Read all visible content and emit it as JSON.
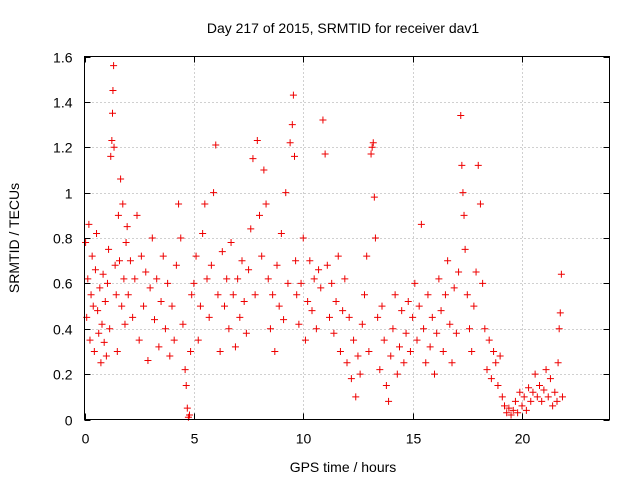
{
  "chart_data": {
    "type": "scatter",
    "title": "Day 217 of 2015, SRMTID for receiver dav1",
    "xlabel": "GPS time / hours",
    "ylabel": "SRMTID / TECUs",
    "xlim": [
      0,
      24
    ],
    "ylim": [
      0,
      1.6
    ],
    "xticks": [
      0,
      5,
      10,
      15,
      20
    ],
    "xtick_labels": [
      "0",
      "5",
      "10",
      "15",
      "20"
    ],
    "yticks": [
      0,
      0.2,
      0.4,
      0.6,
      0.8,
      1,
      1.2,
      1.4,
      1.6
    ],
    "ytick_labels": [
      "0",
      "0.2",
      "0.4",
      "0.6",
      "0.8",
      "1",
      "1.2",
      "1.4",
      "1.6"
    ],
    "grid": true,
    "marker": "plus",
    "color": "#ee0000",
    "series": [
      {
        "name": "SRMTID",
        "points": [
          [
            0.05,
            0.78
          ],
          [
            0.1,
            0.45
          ],
          [
            0.15,
            0.62
          ],
          [
            0.2,
            0.86
          ],
          [
            0.25,
            0.35
          ],
          [
            0.3,
            0.55
          ],
          [
            0.35,
            0.72
          ],
          [
            0.4,
            0.5
          ],
          [
            0.45,
            0.3
          ],
          [
            0.5,
            0.66
          ],
          [
            0.55,
            0.82
          ],
          [
            0.6,
            0.48
          ],
          [
            0.65,
            0.38
          ],
          [
            0.7,
            0.58
          ],
          [
            0.75,
            0.25
          ],
          [
            0.8,
            0.42
          ],
          [
            0.85,
            0.64
          ],
          [
            0.9,
            0.34
          ],
          [
            0.95,
            0.52
          ],
          [
            1.0,
            0.28
          ],
          [
            1.05,
            0.6
          ],
          [
            1.1,
            0.75
          ],
          [
            1.15,
            0.4
          ],
          [
            1.2,
            1.16
          ],
          [
            1.25,
            1.23
          ],
          [
            1.28,
            1.35
          ],
          [
            1.3,
            1.45
          ],
          [
            1.33,
            1.56
          ],
          [
            1.35,
            1.2
          ],
          [
            1.4,
            0.68
          ],
          [
            1.45,
            0.55
          ],
          [
            1.5,
            0.3
          ],
          [
            1.55,
            0.9
          ],
          [
            1.6,
            0.7
          ],
          [
            1.65,
            1.06
          ],
          [
            1.7,
            0.5
          ],
          [
            1.75,
            0.95
          ],
          [
            1.8,
            0.62
          ],
          [
            1.85,
            0.42
          ],
          [
            1.9,
            0.78
          ],
          [
            1.95,
            0.85
          ],
          [
            2.0,
            0.55
          ],
          [
            2.1,
            0.7
          ],
          [
            2.2,
            0.45
          ],
          [
            2.3,
            0.62
          ],
          [
            2.4,
            0.9
          ],
          [
            2.5,
            0.35
          ],
          [
            2.6,
            0.72
          ],
          [
            2.7,
            0.5
          ],
          [
            2.8,
            0.65
          ],
          [
            2.9,
            0.26
          ],
          [
            3.0,
            0.58
          ],
          [
            3.1,
            0.8
          ],
          [
            3.2,
            0.44
          ],
          [
            3.3,
            0.62
          ],
          [
            3.4,
            0.32
          ],
          [
            3.5,
            0.52
          ],
          [
            3.6,
            0.72
          ],
          [
            3.7,
            0.4
          ],
          [
            3.8,
            0.6
          ],
          [
            3.9,
            0.28
          ],
          [
            4.0,
            0.5
          ],
          [
            4.1,
            0.35
          ],
          [
            4.2,
            0.68
          ],
          [
            4.3,
            0.95
          ],
          [
            4.4,
            0.8
          ],
          [
            4.5,
            0.42
          ],
          [
            4.6,
            0.22
          ],
          [
            4.65,
            0.15
          ],
          [
            4.7,
            0.05
          ],
          [
            4.75,
            0.01
          ],
          [
            4.8,
            0.02
          ],
          [
            4.85,
            0.3
          ],
          [
            4.9,
            0.55
          ],
          [
            5.0,
            0.6
          ],
          [
            5.1,
            0.72
          ],
          [
            5.2,
            0.35
          ],
          [
            5.3,
            0.5
          ],
          [
            5.4,
            0.82
          ],
          [
            5.5,
            0.95
          ],
          [
            5.6,
            0.62
          ],
          [
            5.7,
            0.45
          ],
          [
            5.8,
            0.68
          ],
          [
            5.9,
            1.0
          ],
          [
            6.0,
            1.21
          ],
          [
            6.1,
            0.55
          ],
          [
            6.2,
            0.3
          ],
          [
            6.3,
            0.74
          ],
          [
            6.4,
            0.5
          ],
          [
            6.5,
            0.62
          ],
          [
            6.6,
            0.4
          ],
          [
            6.7,
            0.78
          ],
          [
            6.8,
            0.55
          ],
          [
            6.9,
            0.32
          ],
          [
            7.0,
            0.62
          ],
          [
            7.1,
            0.45
          ],
          [
            7.2,
            0.7
          ],
          [
            7.3,
            0.52
          ],
          [
            7.4,
            0.38
          ],
          [
            7.5,
            0.66
          ],
          [
            7.6,
            0.84
          ],
          [
            7.7,
            1.15
          ],
          [
            7.8,
            0.55
          ],
          [
            7.9,
            1.23
          ],
          [
            8.0,
            0.9
          ],
          [
            8.1,
            0.72
          ],
          [
            8.2,
            1.1
          ],
          [
            8.3,
            0.95
          ],
          [
            8.4,
            0.62
          ],
          [
            8.5,
            0.4
          ],
          [
            8.6,
            0.55
          ],
          [
            8.7,
            0.3
          ],
          [
            8.8,
            0.68
          ],
          [
            8.9,
            0.5
          ],
          [
            9.0,
            0.82
          ],
          [
            9.1,
            0.44
          ],
          [
            9.2,
            1.0
          ],
          [
            9.3,
            0.6
          ],
          [
            9.4,
            1.22
          ],
          [
            9.5,
            1.3
          ],
          [
            9.55,
            1.43
          ],
          [
            9.6,
            1.16
          ],
          [
            9.65,
            0.7
          ],
          [
            9.7,
            0.55
          ],
          [
            9.8,
            0.42
          ],
          [
            9.9,
            0.6
          ],
          [
            10.0,
            0.8
          ],
          [
            10.1,
            0.35
          ],
          [
            10.2,
            0.52
          ],
          [
            10.3,
            0.7
          ],
          [
            10.4,
            0.48
          ],
          [
            10.5,
            0.62
          ],
          [
            10.6,
            0.4
          ],
          [
            10.7,
            0.66
          ],
          [
            10.8,
            0.58
          ],
          [
            10.9,
            1.32
          ],
          [
            11.0,
            1.17
          ],
          [
            11.1,
            0.68
          ],
          [
            11.2,
            0.45
          ],
          [
            11.3,
            0.6
          ],
          [
            11.4,
            0.38
          ],
          [
            11.5,
            0.52
          ],
          [
            11.6,
            0.72
          ],
          [
            11.7,
            0.3
          ],
          [
            11.8,
            0.48
          ],
          [
            11.9,
            0.62
          ],
          [
            12.0,
            0.25
          ],
          [
            12.1,
            0.45
          ],
          [
            12.2,
            0.18
          ],
          [
            12.3,
            0.35
          ],
          [
            12.4,
            0.1
          ],
          [
            12.5,
            0.28
          ],
          [
            12.6,
            0.2
          ],
          [
            12.7,
            0.42
          ],
          [
            12.8,
            0.55
          ],
          [
            12.9,
            0.72
          ],
          [
            13.0,
            0.3
          ],
          [
            13.1,
            1.17
          ],
          [
            13.15,
            1.2
          ],
          [
            13.2,
            1.22
          ],
          [
            13.25,
            0.98
          ],
          [
            13.3,
            0.8
          ],
          [
            13.4,
            0.45
          ],
          [
            13.5,
            0.22
          ],
          [
            13.6,
            0.5
          ],
          [
            13.7,
            0.35
          ],
          [
            13.8,
            0.15
          ],
          [
            13.9,
            0.08
          ],
          [
            14.0,
            0.28
          ],
          [
            14.1,
            0.4
          ],
          [
            14.2,
            0.55
          ],
          [
            14.3,
            0.2
          ],
          [
            14.4,
            0.32
          ],
          [
            14.5,
            0.48
          ],
          [
            14.6,
            0.25
          ],
          [
            14.7,
            0.38
          ],
          [
            14.8,
            0.52
          ],
          [
            14.9,
            0.3
          ],
          [
            15.0,
            0.45
          ],
          [
            15.1,
            0.6
          ],
          [
            15.2,
            0.35
          ],
          [
            15.3,
            0.5
          ],
          [
            15.4,
            0.86
          ],
          [
            15.5,
            0.4
          ],
          [
            15.6,
            0.25
          ],
          [
            15.7,
            0.55
          ],
          [
            15.8,
            0.32
          ],
          [
            15.9,
            0.45
          ],
          [
            16.0,
            0.2
          ],
          [
            16.1,
            0.38
          ],
          [
            16.2,
            0.62
          ],
          [
            16.3,
            0.48
          ],
          [
            16.4,
            0.3
          ],
          [
            16.5,
            0.55
          ],
          [
            16.6,
            0.7
          ],
          [
            16.7,
            0.42
          ],
          [
            16.8,
            0.25
          ],
          [
            16.9,
            0.58
          ],
          [
            17.0,
            0.38
          ],
          [
            17.1,
            0.65
          ],
          [
            17.2,
            1.34
          ],
          [
            17.25,
            1.12
          ],
          [
            17.3,
            1.0
          ],
          [
            17.35,
            0.9
          ],
          [
            17.4,
            0.75
          ],
          [
            17.5,
            0.55
          ],
          [
            17.6,
            0.4
          ],
          [
            17.7,
            0.3
          ],
          [
            17.8,
            0.5
          ],
          [
            17.9,
            0.65
          ],
          [
            18.0,
            1.12
          ],
          [
            18.1,
            0.95
          ],
          [
            18.2,
            0.6
          ],
          [
            18.3,
            0.4
          ],
          [
            18.4,
            0.22
          ],
          [
            18.5,
            0.35
          ],
          [
            18.6,
            0.18
          ],
          [
            18.7,
            0.3
          ],
          [
            18.8,
            0.25
          ],
          [
            18.9,
            0.15
          ],
          [
            19.0,
            0.28
          ],
          [
            19.1,
            0.1
          ],
          [
            19.2,
            0.06
          ],
          [
            19.3,
            0.03
          ],
          [
            19.4,
            0.05
          ],
          [
            19.5,
            0.02
          ],
          [
            19.6,
            0.04
          ],
          [
            19.7,
            0.08
          ],
          [
            19.8,
            0.03
          ],
          [
            19.9,
            0.12
          ],
          [
            20.0,
            0.06
          ],
          [
            20.1,
            0.1
          ],
          [
            20.2,
            0.04
          ],
          [
            20.3,
            0.14
          ],
          [
            20.4,
            0.08
          ],
          [
            20.5,
            0.12
          ],
          [
            20.6,
            0.2
          ],
          [
            20.7,
            0.1
          ],
          [
            20.8,
            0.15
          ],
          [
            20.9,
            0.08
          ],
          [
            21.0,
            0.13
          ],
          [
            21.1,
            0.22
          ],
          [
            21.2,
            0.1
          ],
          [
            21.3,
            0.18
          ],
          [
            21.4,
            0.06
          ],
          [
            21.5,
            0.12
          ],
          [
            21.6,
            0.08
          ],
          [
            21.65,
            0.25
          ],
          [
            21.7,
            0.4
          ],
          [
            21.75,
            0.47
          ],
          [
            21.8,
            0.64
          ],
          [
            21.85,
            0.1
          ]
        ]
      }
    ]
  }
}
